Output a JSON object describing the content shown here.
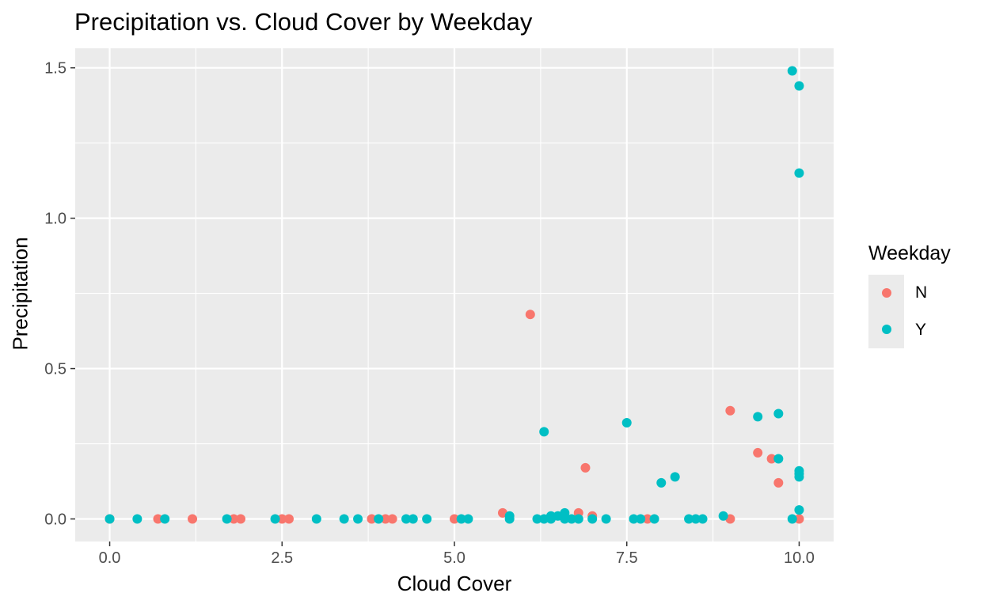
{
  "chart_data": {
    "type": "scatter",
    "title": "Precipitation vs. Cloud Cover by Weekday",
    "xlabel": "Cloud Cover",
    "ylabel": "Precipitation",
    "xlim": [
      -0.5,
      10.5
    ],
    "ylim": [
      -0.075,
      1.565
    ],
    "xticks": [
      0,
      2.5,
      5,
      7.5,
      10
    ],
    "xtick_labels": [
      "0.0",
      "2.5",
      "5.0",
      "7.5",
      "10.0"
    ],
    "yticks": [
      0,
      0.5,
      1,
      1.5
    ],
    "ytick_labels": [
      "0.0",
      "0.5",
      "1.0",
      "1.5"
    ],
    "grid": true,
    "legend": {
      "title": "Weekday",
      "position": "right"
    },
    "series": [
      {
        "name": "N",
        "color": "#F8766D",
        "points": [
          [
            0,
            0
          ],
          [
            0.7,
            0
          ],
          [
            1.2,
            0
          ],
          [
            1.8,
            0
          ],
          [
            1.9,
            0
          ],
          [
            2.5,
            0
          ],
          [
            2.6,
            0
          ],
          [
            3.8,
            0
          ],
          [
            4.0,
            0
          ],
          [
            4.1,
            0
          ],
          [
            5.0,
            0
          ],
          [
            5.7,
            0.02
          ],
          [
            6.1,
            0.68
          ],
          [
            6.8,
            0.02
          ],
          [
            6.9,
            0.17
          ],
          [
            7.0,
            0.01
          ],
          [
            7.8,
            0
          ],
          [
            9.0,
            0.36
          ],
          [
            9.0,
            0
          ],
          [
            9.4,
            0.22
          ],
          [
            9.6,
            0.2
          ],
          [
            9.7,
            0.12
          ],
          [
            10.0,
            0
          ]
        ]
      },
      {
        "name": "Y",
        "color": "#00BFC4",
        "points": [
          [
            0,
            0
          ],
          [
            0.4,
            0
          ],
          [
            0.8,
            0
          ],
          [
            1.7,
            0
          ],
          [
            2.4,
            0
          ],
          [
            3.0,
            0
          ],
          [
            3.4,
            0
          ],
          [
            3.6,
            0
          ],
          [
            3.9,
            0
          ],
          [
            4.3,
            0
          ],
          [
            4.4,
            0
          ],
          [
            4.6,
            0
          ],
          [
            5.1,
            0
          ],
          [
            5.2,
            0
          ],
          [
            5.8,
            0.01
          ],
          [
            5.8,
            0
          ],
          [
            6.2,
            0
          ],
          [
            6.3,
            0.29
          ],
          [
            6.3,
            0
          ],
          [
            6.4,
            0.01
          ],
          [
            6.4,
            0
          ],
          [
            6.5,
            0.01
          ],
          [
            6.6,
            0.02
          ],
          [
            6.6,
            0
          ],
          [
            6.7,
            0
          ],
          [
            6.8,
            0
          ],
          [
            7.0,
            0
          ],
          [
            7.2,
            0
          ],
          [
            7.5,
            0.32
          ],
          [
            7.6,
            0
          ],
          [
            7.7,
            0
          ],
          [
            7.9,
            0
          ],
          [
            8.0,
            0.12
          ],
          [
            8.2,
            0.14
          ],
          [
            8.4,
            0
          ],
          [
            8.5,
            0
          ],
          [
            8.6,
            0
          ],
          [
            8.9,
            0.01
          ],
          [
            9.4,
            0.34
          ],
          [
            9.7,
            0.35
          ],
          [
            9.7,
            0.2
          ],
          [
            9.9,
            1.49
          ],
          [
            9.9,
            0
          ],
          [
            10.0,
            1.44
          ],
          [
            10.0,
            1.15
          ],
          [
            10.0,
            0.16
          ],
          [
            10.0,
            0.15
          ],
          [
            10.0,
            0.14
          ],
          [
            10.0,
            0.03
          ]
        ]
      }
    ]
  }
}
